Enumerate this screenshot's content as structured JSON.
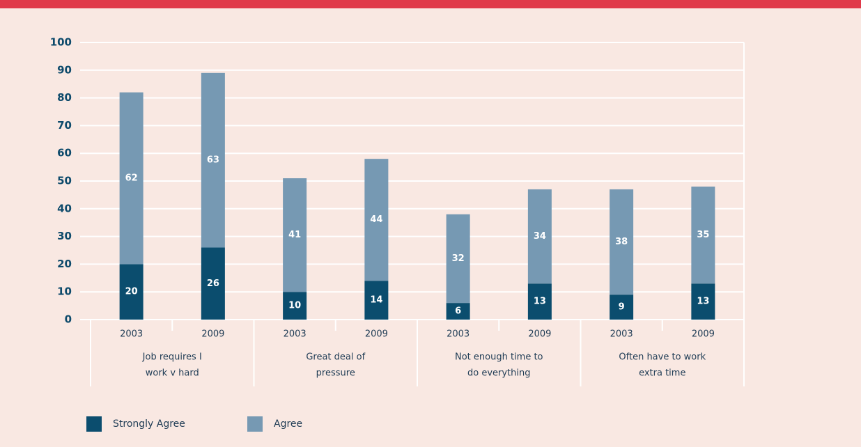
{
  "chart_data": {
    "type": "stacked_bar",
    "categories": [
      "2003",
      "2009",
      "2003",
      "2009",
      "2003",
      "2009",
      "2003",
      "2009"
    ],
    "groups": [
      [
        "Job requires I",
        "work v hard"
      ],
      [
        "Great deal of",
        "pressure"
      ],
      [
        "Not enough time to",
        "do everything"
      ],
      [
        "Often have to work",
        "extra time"
      ]
    ],
    "series": [
      {
        "name": "Strongly Agree",
        "color": "#0b4d6e",
        "values": [
          20,
          26,
          10,
          14,
          6,
          13,
          9,
          13
        ]
      },
      {
        "name": "Agree",
        "color": "#7699b3",
        "values": [
          62,
          63,
          41,
          44,
          32,
          34,
          38,
          35
        ]
      }
    ],
    "ylim": [
      0,
      100
    ],
    "yticks": [
      0,
      10,
      20,
      30,
      40,
      50,
      60,
      70,
      80,
      90,
      100
    ],
    "grid": true
  }
}
